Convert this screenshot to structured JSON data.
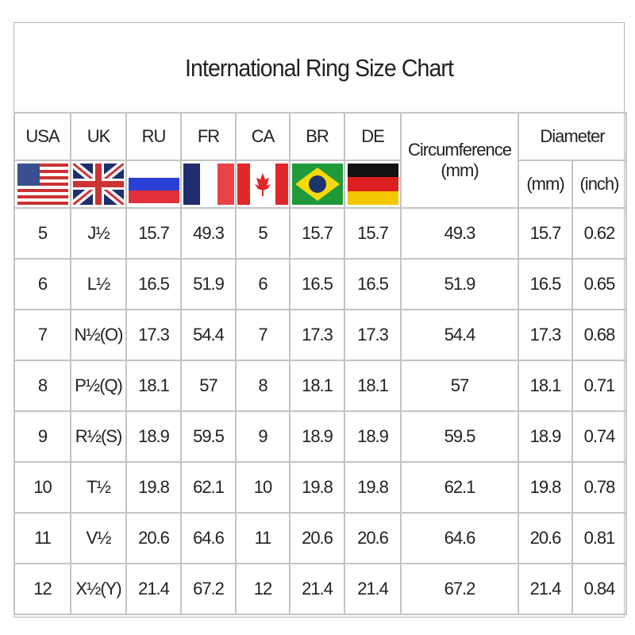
{
  "title": "International Ring Size Chart",
  "chart_data": {
    "type": "table",
    "title": "International Ring Size Chart",
    "columns": [
      "USA",
      "UK",
      "RU",
      "FR",
      "CA",
      "BR",
      "DE",
      "Circumference (mm)",
      "Diameter (mm)",
      "Diameter (inch)"
    ],
    "header": {
      "usa": "USA",
      "uk": "UK",
      "ru": "RU",
      "fr": "FR",
      "ca": "CA",
      "br": "BR",
      "de": "DE",
      "circ": "Circumference",
      "circ_unit": "(mm)",
      "diam": "Diameter",
      "diam_mm": "(mm)",
      "diam_inch": "(inch)"
    },
    "flags": [
      "us-flag",
      "uk-flag",
      "russia-flag",
      "france-flag",
      "canada-flag",
      "brazil-flag",
      "germany-flag"
    ],
    "rows": [
      [
        "5",
        "J½",
        "15.7",
        "49.3",
        "5",
        "15.7",
        "15.7",
        "49.3",
        "15.7",
        "0.62"
      ],
      [
        "6",
        "L½",
        "16.5",
        "51.9",
        "6",
        "16.5",
        "16.5",
        "51.9",
        "16.5",
        "0.65"
      ],
      [
        "7",
        "N½(O)",
        "17.3",
        "54.4",
        "7",
        "17.3",
        "17.3",
        "54.4",
        "17.3",
        "0.68"
      ],
      [
        "8",
        "P½(Q)",
        "18.1",
        "57",
        "8",
        "18.1",
        "18.1",
        "57",
        "18.1",
        "0.71"
      ],
      [
        "9",
        "R½(S)",
        "18.9",
        "59.5",
        "9",
        "18.9",
        "18.9",
        "59.5",
        "18.9",
        "0.74"
      ],
      [
        "10",
        "T½",
        "19.8",
        "62.1",
        "10",
        "19.8",
        "19.8",
        "62.1",
        "19.8",
        "0.78"
      ],
      [
        "11",
        "V½",
        "20.6",
        "64.6",
        "11",
        "20.6",
        "20.6",
        "64.6",
        "20.6",
        "0.81"
      ],
      [
        "12",
        "X½(Y)",
        "21.4",
        "67.2",
        "12",
        "21.4",
        "21.4",
        "67.2",
        "21.4",
        "0.84"
      ]
    ]
  }
}
